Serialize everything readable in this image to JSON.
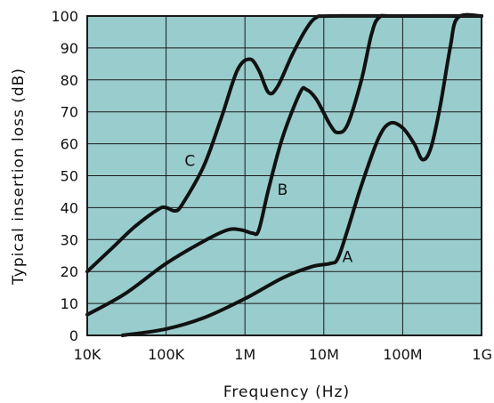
{
  "chart_data": {
    "type": "line",
    "xlabel": "Frequency (Hz)",
    "ylabel": "Typical insertion loss (dB)",
    "x_scale": "log",
    "xlim": [
      10000,
      1000000000
    ],
    "ylim": [
      0,
      100
    ],
    "x_ticks": [
      {
        "value": 10000,
        "label": "10K"
      },
      {
        "value": 100000,
        "label": "100K"
      },
      {
        "value": 1000000,
        "label": "1M"
      },
      {
        "value": 10000000,
        "label": "10M"
      },
      {
        "value": 100000000,
        "label": "100M"
      },
      {
        "value": 1000000000,
        "label": "1G"
      }
    ],
    "y_ticks": [
      0,
      10,
      20,
      30,
      40,
      50,
      60,
      70,
      80,
      90,
      100
    ],
    "grid": true,
    "plot_background": "#99cccc",
    "line_color": "#111111",
    "series": [
      {
        "name": "C",
        "points": [
          [
            10000,
            20
          ],
          [
            20000,
            27
          ],
          [
            40000,
            34
          ],
          [
            80000,
            39.5
          ],
          [
            100000,
            40
          ],
          [
            130000,
            39
          ],
          [
            160000,
            41
          ],
          [
            300000,
            53
          ],
          [
            500000,
            68
          ],
          [
            800000,
            83
          ],
          [
            1150000,
            86.5
          ],
          [
            1500000,
            83
          ],
          [
            2000000,
            76
          ],
          [
            2600000,
            78
          ],
          [
            4000000,
            88
          ],
          [
            6000000,
            96
          ],
          [
            8000000,
            99.5
          ],
          [
            12000000,
            100
          ],
          [
            100000000,
            100
          ],
          [
            1000000000,
            100
          ]
        ]
      },
      {
        "name": "B",
        "points": [
          [
            10000,
            6.5
          ],
          [
            30000,
            13
          ],
          [
            100000,
            22.5
          ],
          [
            300000,
            29.5
          ],
          [
            600000,
            33
          ],
          [
            900000,
            33
          ],
          [
            1250000,
            32
          ],
          [
            1500000,
            33
          ],
          [
            2000000,
            46
          ],
          [
            3000000,
            62
          ],
          [
            5000000,
            76
          ],
          [
            6000000,
            77
          ],
          [
            8000000,
            74
          ],
          [
            12000000,
            66
          ],
          [
            15000000,
            63.5
          ],
          [
            20000000,
            66
          ],
          [
            30000000,
            80
          ],
          [
            40000000,
            94
          ],
          [
            50000000,
            99.5
          ],
          [
            80000000,
            100
          ],
          [
            1000000000,
            100
          ]
        ]
      },
      {
        "name": "A",
        "points": [
          [
            28000,
            0
          ],
          [
            100000,
            2
          ],
          [
            300000,
            5.5
          ],
          [
            1000000,
            11.5
          ],
          [
            3000000,
            18
          ],
          [
            7000000,
            21.5
          ],
          [
            12000000,
            22.5
          ],
          [
            15000000,
            24
          ],
          [
            20000000,
            33
          ],
          [
            30000000,
            47
          ],
          [
            50000000,
            62
          ],
          [
            70000000,
            66.5
          ],
          [
            100000000,
            65
          ],
          [
            140000000,
            60
          ],
          [
            180000000,
            55
          ],
          [
            230000000,
            59
          ],
          [
            300000000,
            72
          ],
          [
            400000000,
            90
          ],
          [
            500000000,
            99.5
          ],
          [
            1000000000,
            100
          ]
        ]
      }
    ],
    "curve_labels": [
      {
        "text": "C",
        "x": 200000,
        "y": 53
      },
      {
        "text": "B",
        "x": 3000000,
        "y": 44
      },
      {
        "text": "A",
        "x": 20000000,
        "y": 23
      }
    ]
  }
}
